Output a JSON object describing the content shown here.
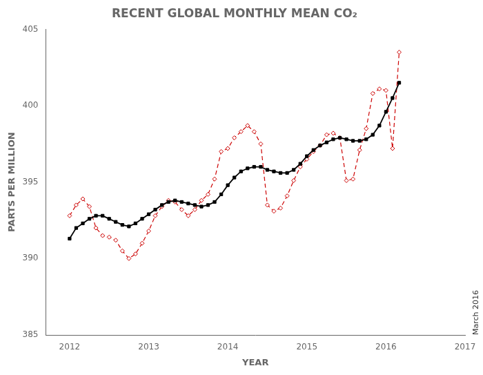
{
  "chart_data": {
    "type": "line",
    "title": "RECENT GLOBAL MONTHLY MEAN CO₂",
    "xlabel": "YEAR",
    "ylabel": "PARTS PER MILLION",
    "annotations": [
      "March 2016"
    ],
    "xlim": [
      2011.7,
      2017.0
    ],
    "ylim": [
      385,
      405
    ],
    "xticks": [
      2012,
      2013,
      2014,
      2015,
      2016,
      2017
    ],
    "yticks": [
      385,
      390,
      395,
      400,
      405
    ],
    "grid": false,
    "x": [
      2012.0,
      2012.083,
      2012.167,
      2012.25,
      2012.333,
      2012.417,
      2012.5,
      2012.583,
      2012.667,
      2012.75,
      2012.833,
      2012.917,
      2013.0,
      2013.083,
      2013.167,
      2013.25,
      2013.333,
      2013.417,
      2013.5,
      2013.583,
      2013.667,
      2013.75,
      2013.833,
      2013.917,
      2014.0,
      2014.083,
      2014.167,
      2014.25,
      2014.333,
      2014.417,
      2014.5,
      2014.583,
      2014.667,
      2014.75,
      2014.833,
      2014.917,
      2015.0,
      2015.083,
      2015.167,
      2015.25,
      2015.333,
      2015.417,
      2015.5,
      2015.583,
      2015.667,
      2015.75,
      2015.833,
      2015.917,
      2016.0,
      2016.083,
      2016.167
    ],
    "series": [
      {
        "color": "#000000",
        "marker": "square",
        "line_style": "solid",
        "values": [
          391.3,
          392.0,
          392.3,
          392.6,
          392.8,
          392.8,
          392.6,
          392.4,
          392.2,
          392.1,
          392.3,
          392.6,
          392.9,
          393.2,
          393.5,
          393.7,
          393.8,
          393.7,
          393.6,
          393.5,
          393.4,
          393.5,
          393.7,
          394.2,
          394.8,
          395.3,
          395.7,
          395.9,
          396.0,
          396.0,
          395.8,
          395.7,
          395.6,
          395.6,
          395.8,
          396.2,
          396.7,
          397.1,
          397.4,
          397.6,
          397.8,
          397.9,
          397.8,
          397.7,
          397.7,
          397.8,
          398.1,
          398.7,
          399.6,
          400.5,
          401.5
        ]
      },
      {
        "color": "#cc0000",
        "marker": "diamond",
        "line_style": "dashed",
        "values": [
          392.8,
          393.5,
          393.9,
          393.4,
          392.0,
          391.5,
          391.4,
          391.2,
          390.5,
          390.0,
          390.3,
          391.0,
          391.8,
          392.8,
          393.4,
          393.8,
          393.7,
          393.2,
          392.8,
          393.2,
          393.8,
          394.2,
          395.2,
          397.0,
          397.2,
          397.9,
          398.3,
          398.7,
          398.3,
          397.5,
          393.5,
          393.1,
          393.3,
          394.1,
          395.1,
          396.0,
          396.5,
          397.0,
          397.4,
          398.1,
          398.2,
          397.9,
          395.1,
          395.2,
          397.1,
          398.5,
          400.8,
          401.1,
          401.0,
          397.2,
          403.5
        ]
      }
    ]
  }
}
